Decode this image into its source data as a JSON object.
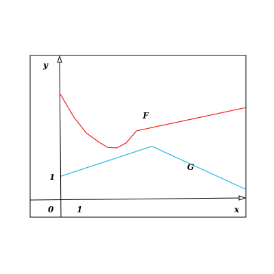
{
  "chart_data": {
    "type": "line",
    "xlabel": "x",
    "ylabel": "y",
    "origin_label": "0",
    "x_tick_label": "1",
    "y_tick_label": "1",
    "xlim": [
      -1.0,
      6.1
    ],
    "ylim": [
      -0.6,
      4.7
    ],
    "x_ticks": [
      0,
      1
    ],
    "y_ticks": [
      1
    ],
    "series": [
      {
        "name": "F",
        "color": "#ee1c1c",
        "points": [
          [
            0.0,
            4.7
          ],
          [
            0.45,
            3.65
          ],
          [
            0.85,
            2.95
          ],
          [
            1.25,
            2.55
          ],
          [
            1.55,
            2.3
          ],
          [
            1.85,
            2.28
          ],
          [
            2.15,
            2.5
          ],
          [
            2.5,
            3.05
          ],
          [
            6.1,
            4.1
          ]
        ],
        "label_at": [
          2.7,
          3.6
        ]
      },
      {
        "name": "G",
        "color": "#1cb8e0",
        "points": [
          [
            0.0,
            1.0
          ],
          [
            3.0,
            2.35
          ],
          [
            6.1,
            0.4
          ]
        ],
        "label_at": [
          4.15,
          1.3
        ]
      }
    ]
  }
}
